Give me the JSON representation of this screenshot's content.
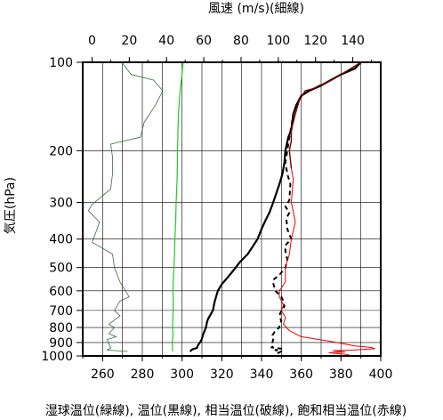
{
  "chart_data": {
    "type": "line",
    "top_axis_label": "風速 (m/s)(細線)",
    "top_axis": {
      "range": [
        -5,
        155
      ],
      "ticks": [
        0,
        20,
        40,
        60,
        80,
        100,
        120,
        140
      ]
    },
    "bottom_axis_label": "湿球温位(緑線), 温位(黒線), 相当温位(破線), 飽和相当温位(赤線)",
    "bottom_axis": {
      "range": [
        250,
        400
      ],
      "ticks": [
        260,
        280,
        300,
        320,
        340,
        360,
        380,
        400
      ]
    },
    "ylabel": "気圧(hPa)",
    "y_axis": {
      "scale": "log",
      "range": [
        1000,
        100
      ],
      "ticks": [
        100,
        200,
        300,
        400,
        500,
        600,
        700,
        800,
        900,
        1000
      ]
    },
    "grid": true,
    "colors": {
      "wind": "#3a6b3a",
      "wet_bulb": "#22cc22",
      "theta": "#000000",
      "theta_e": "#000000",
      "theta_es": "#ee0000",
      "theta_es_upper": "#7a0000"
    },
    "series": [
      {
        "key": "wind",
        "axis": "top",
        "style": "thin",
        "points": [
          [
            19,
            965
          ],
          [
            8,
            955
          ],
          [
            10,
            940
          ],
          [
            9,
            905
          ],
          [
            8,
            880
          ],
          [
            13,
            860
          ],
          [
            9,
            840
          ],
          [
            12,
            800
          ],
          [
            9,
            780
          ],
          [
            15,
            730
          ],
          [
            12,
            700
          ],
          [
            15,
            650
          ],
          [
            20,
            630
          ],
          [
            15,
            560
          ],
          [
            12,
            500
          ],
          [
            11,
            450
          ],
          [
            0,
            410
          ],
          [
            2,
            380
          ],
          [
            4,
            350
          ],
          [
            -2,
            320
          ],
          [
            0,
            305
          ],
          [
            10,
            270
          ],
          [
            11,
            240
          ],
          [
            11,
            210
          ],
          [
            10,
            190
          ],
          [
            26,
            180
          ],
          [
            28,
            160
          ],
          [
            34,
            140
          ],
          [
            38,
            125
          ],
          [
            33,
            115
          ],
          [
            21,
            110
          ],
          [
            16,
            100
          ]
        ]
      },
      {
        "key": "wet_bulb",
        "axis": "bottom",
        "style": "thin",
        "points": [
          [
            295.3,
            965
          ],
          [
            295.2,
            950
          ],
          [
            295,
            900
          ],
          [
            295.5,
            850
          ],
          [
            295.2,
            800
          ],
          [
            295.3,
            750
          ],
          [
            295.5,
            700
          ],
          [
            295.6,
            650
          ],
          [
            295.4,
            600
          ],
          [
            295.6,
            550
          ],
          [
            295.9,
            500
          ],
          [
            296.2,
            450
          ],
          [
            296.4,
            400
          ],
          [
            296.8,
            350
          ],
          [
            297,
            300
          ],
          [
            297.5,
            250
          ],
          [
            297.7,
            200
          ],
          [
            298.2,
            150
          ],
          [
            299,
            125
          ],
          [
            300,
            110
          ],
          [
            300.5,
            100
          ]
        ]
      },
      {
        "key": "theta",
        "axis": "bottom",
        "style": "thick",
        "points": [
          [
            304,
            965
          ],
          [
            305.2,
            950
          ],
          [
            307.5,
            940
          ],
          [
            308,
            920
          ],
          [
            309,
            900
          ],
          [
            309.8,
            880
          ],
          [
            310.5,
            850
          ],
          [
            312,
            800
          ],
          [
            312.5,
            770
          ],
          [
            313,
            750
          ],
          [
            315.5,
            700
          ],
          [
            316.5,
            650
          ],
          [
            318,
            600
          ],
          [
            320,
            570
          ],
          [
            323,
            540
          ],
          [
            326,
            510
          ],
          [
            329,
            480
          ],
          [
            333,
            450
          ],
          [
            335.5,
            425
          ],
          [
            338,
            400
          ],
          [
            340,
            370
          ],
          [
            342,
            345
          ],
          [
            344,
            325
          ],
          [
            345.5,
            305
          ],
          [
            347,
            285
          ],
          [
            349,
            260
          ],
          [
            350.5,
            240
          ],
          [
            351.5,
            220
          ],
          [
            352,
            200
          ],
          [
            353.5,
            180
          ],
          [
            355,
            170
          ],
          [
            356,
            150
          ],
          [
            357.5,
            140
          ],
          [
            360,
            130
          ],
          [
            364,
            125
          ],
          [
            370,
            120
          ],
          [
            380,
            110
          ],
          [
            387,
            105
          ],
          [
            390,
            100
          ]
        ]
      },
      {
        "key": "theta_e",
        "axis": "bottom",
        "style": "dashed",
        "points": [
          [
            348,
            980
          ],
          [
            350,
            965
          ],
          [
            347,
            955
          ],
          [
            350,
            945
          ],
          [
            345,
            935
          ],
          [
            346,
            925
          ],
          [
            345.5,
            900
          ],
          [
            346,
            870
          ],
          [
            345.5,
            850
          ],
          [
            347,
            820
          ],
          [
            349,
            800
          ],
          [
            349,
            780
          ],
          [
            350,
            760
          ],
          [
            349,
            730
          ],
          [
            350,
            700
          ],
          [
            351.5,
            680
          ],
          [
            351,
            650
          ],
          [
            350,
            630
          ],
          [
            347,
            600
          ],
          [
            346,
            570
          ],
          [
            346,
            550
          ],
          [
            349,
            530
          ],
          [
            352,
            500
          ],
          [
            353,
            470
          ],
          [
            352,
            440
          ],
          [
            352,
            420
          ],
          [
            355,
            400
          ],
          [
            353,
            370
          ],
          [
            352.5,
            340
          ],
          [
            354,
            325
          ],
          [
            352,
            310
          ],
          [
            354,
            295
          ],
          [
            354.5,
            260
          ],
          [
            353,
            240
          ],
          [
            352,
            220
          ],
          [
            353,
            200
          ],
          [
            354,
            180
          ],
          [
            355,
            165
          ],
          [
            356,
            150
          ],
          [
            357.5,
            140
          ],
          [
            360,
            130
          ],
          [
            364,
            125
          ],
          [
            370,
            120
          ],
          [
            380,
            110
          ],
          [
            387,
            105
          ],
          [
            390,
            100
          ]
        ]
      },
      {
        "key": "theta_es",
        "axis": "bottom",
        "style": "thin",
        "points": [
          [
            384,
            990
          ],
          [
            374,
            975
          ],
          [
            382,
            970
          ],
          [
            376,
            960
          ],
          [
            386,
            955
          ],
          [
            397,
            945
          ],
          [
            395,
            935
          ],
          [
            387,
            925
          ],
          [
            378,
            900
          ],
          [
            360,
            860
          ],
          [
            354,
            820
          ],
          [
            351,
            780
          ],
          [
            352,
            740
          ],
          [
            350,
            700
          ],
          [
            351,
            670
          ],
          [
            349,
            630
          ],
          [
            349,
            600
          ],
          [
            352,
            560
          ],
          [
            352,
            500
          ],
          [
            354,
            450
          ],
          [
            355,
            400
          ],
          [
            357,
            350
          ],
          [
            355,
            300
          ],
          [
            356,
            250
          ],
          [
            355,
            230
          ],
          [
            354,
            200
          ],
          [
            355,
            185
          ],
          [
            355,
            170
          ],
          [
            357,
            150
          ],
          [
            359,
            135
          ],
          [
            362,
            125
          ],
          [
            366,
            123
          ],
          [
            369,
            120
          ],
          [
            372,
            118
          ],
          [
            380,
            110
          ],
          [
            386,
            104
          ],
          [
            390,
            100
          ]
        ]
      }
    ]
  }
}
